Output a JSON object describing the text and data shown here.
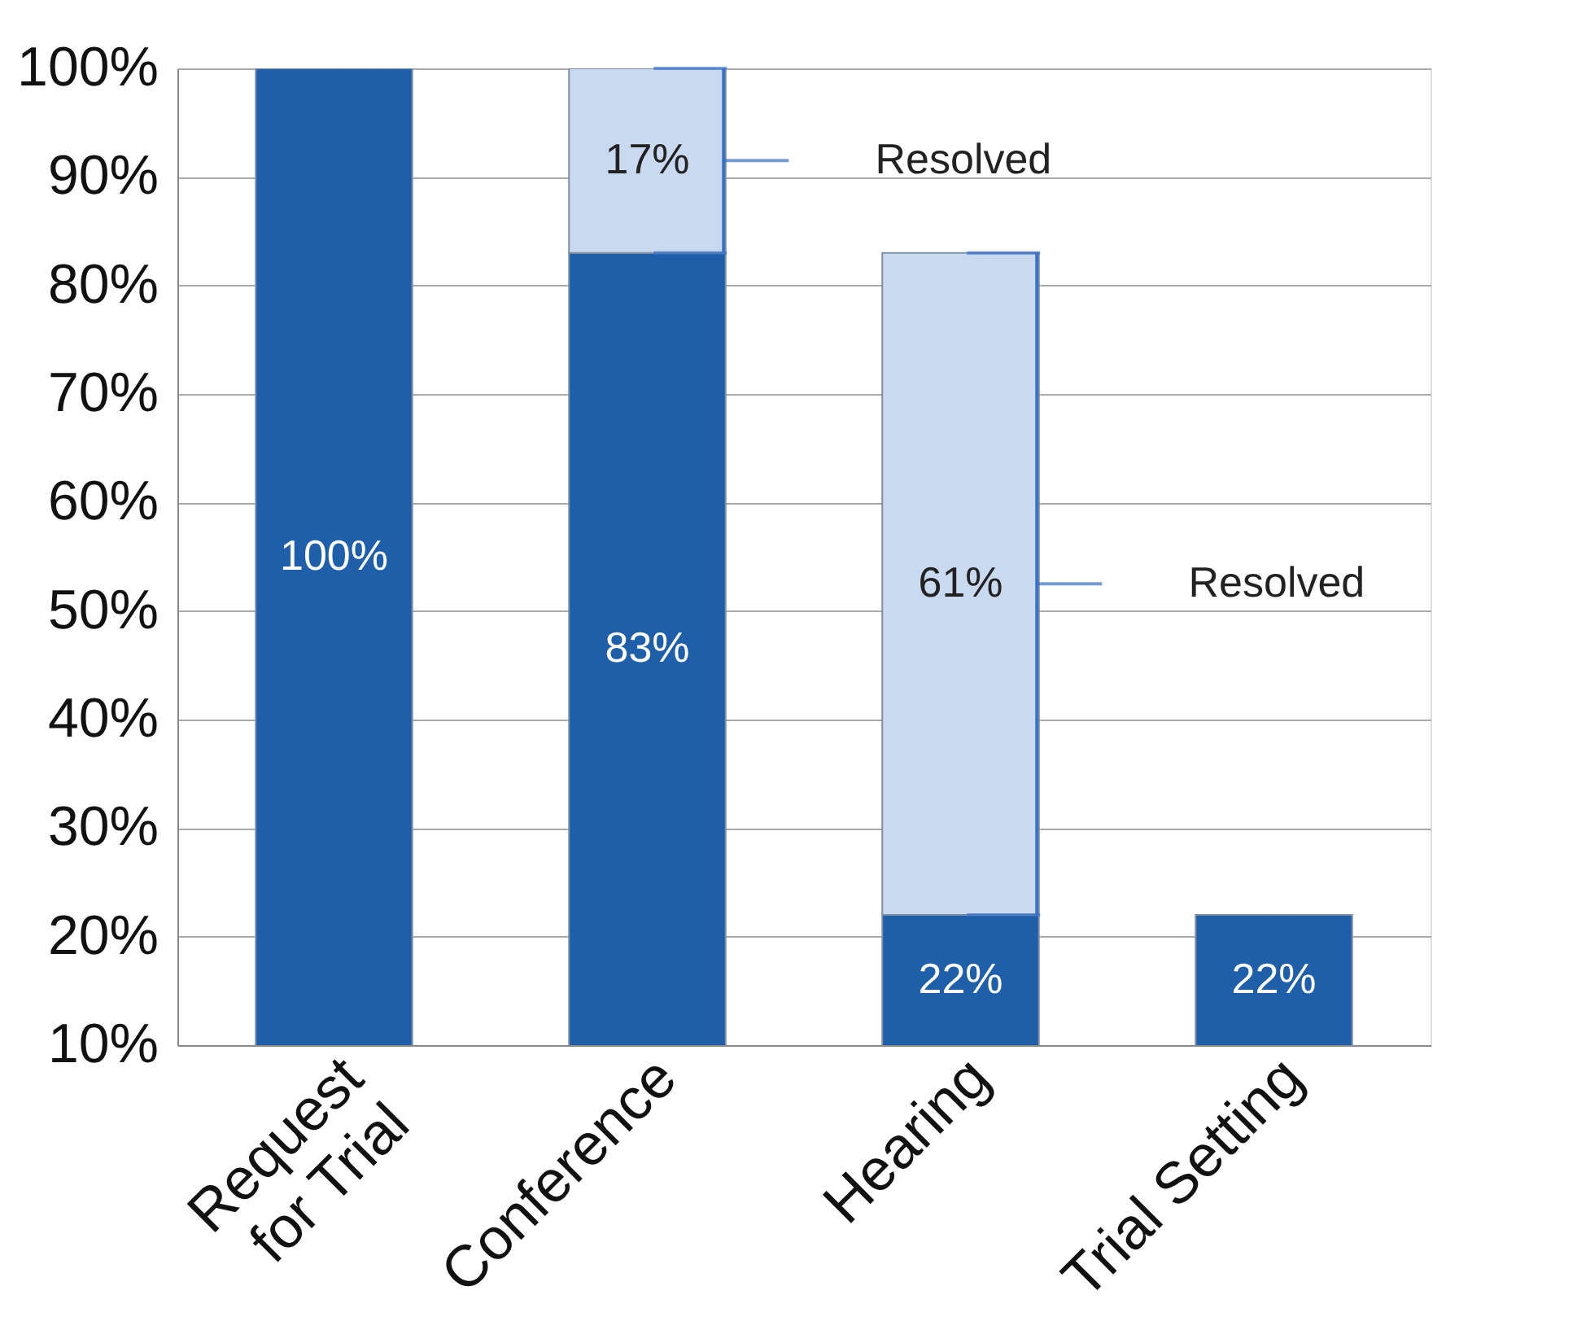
{
  "chart_data": {
    "type": "bar",
    "stacked": true,
    "data_labels": true,
    "grid": "y",
    "categories": [
      "Request\nfor Trial",
      "Conference",
      "Hearing",
      "Trial Setting"
    ],
    "series": [
      {
        "color": "#1f5ea8",
        "values": [
          100,
          83,
          22,
          22
        ],
        "value_labels": [
          "100%",
          "83%",
          "22%",
          "22%"
        ]
      },
      {
        "color": "#c9d9ef",
        "values": [
          null,
          17,
          61,
          null
        ],
        "value_labels": [
          null,
          "17%",
          "61%",
          null
        ]
      }
    ],
    "ylim": [
      10,
      100
    ],
    "yticks": [
      {
        "value": 10,
        "label": "10%"
      },
      {
        "value": 20,
        "label": "20%"
      },
      {
        "value": 30,
        "label": "30%"
      },
      {
        "value": 40,
        "label": "40%"
      },
      {
        "value": 50,
        "label": "50%"
      },
      {
        "value": 60,
        "label": "60%"
      },
      {
        "value": 70,
        "label": "70%"
      },
      {
        "value": 80,
        "label": "80%"
      },
      {
        "value": 90,
        "label": "90%"
      },
      {
        "value": 100,
        "label": "100%"
      }
    ],
    "annotations": [
      "Resolved",
      "Resolved"
    ]
  }
}
